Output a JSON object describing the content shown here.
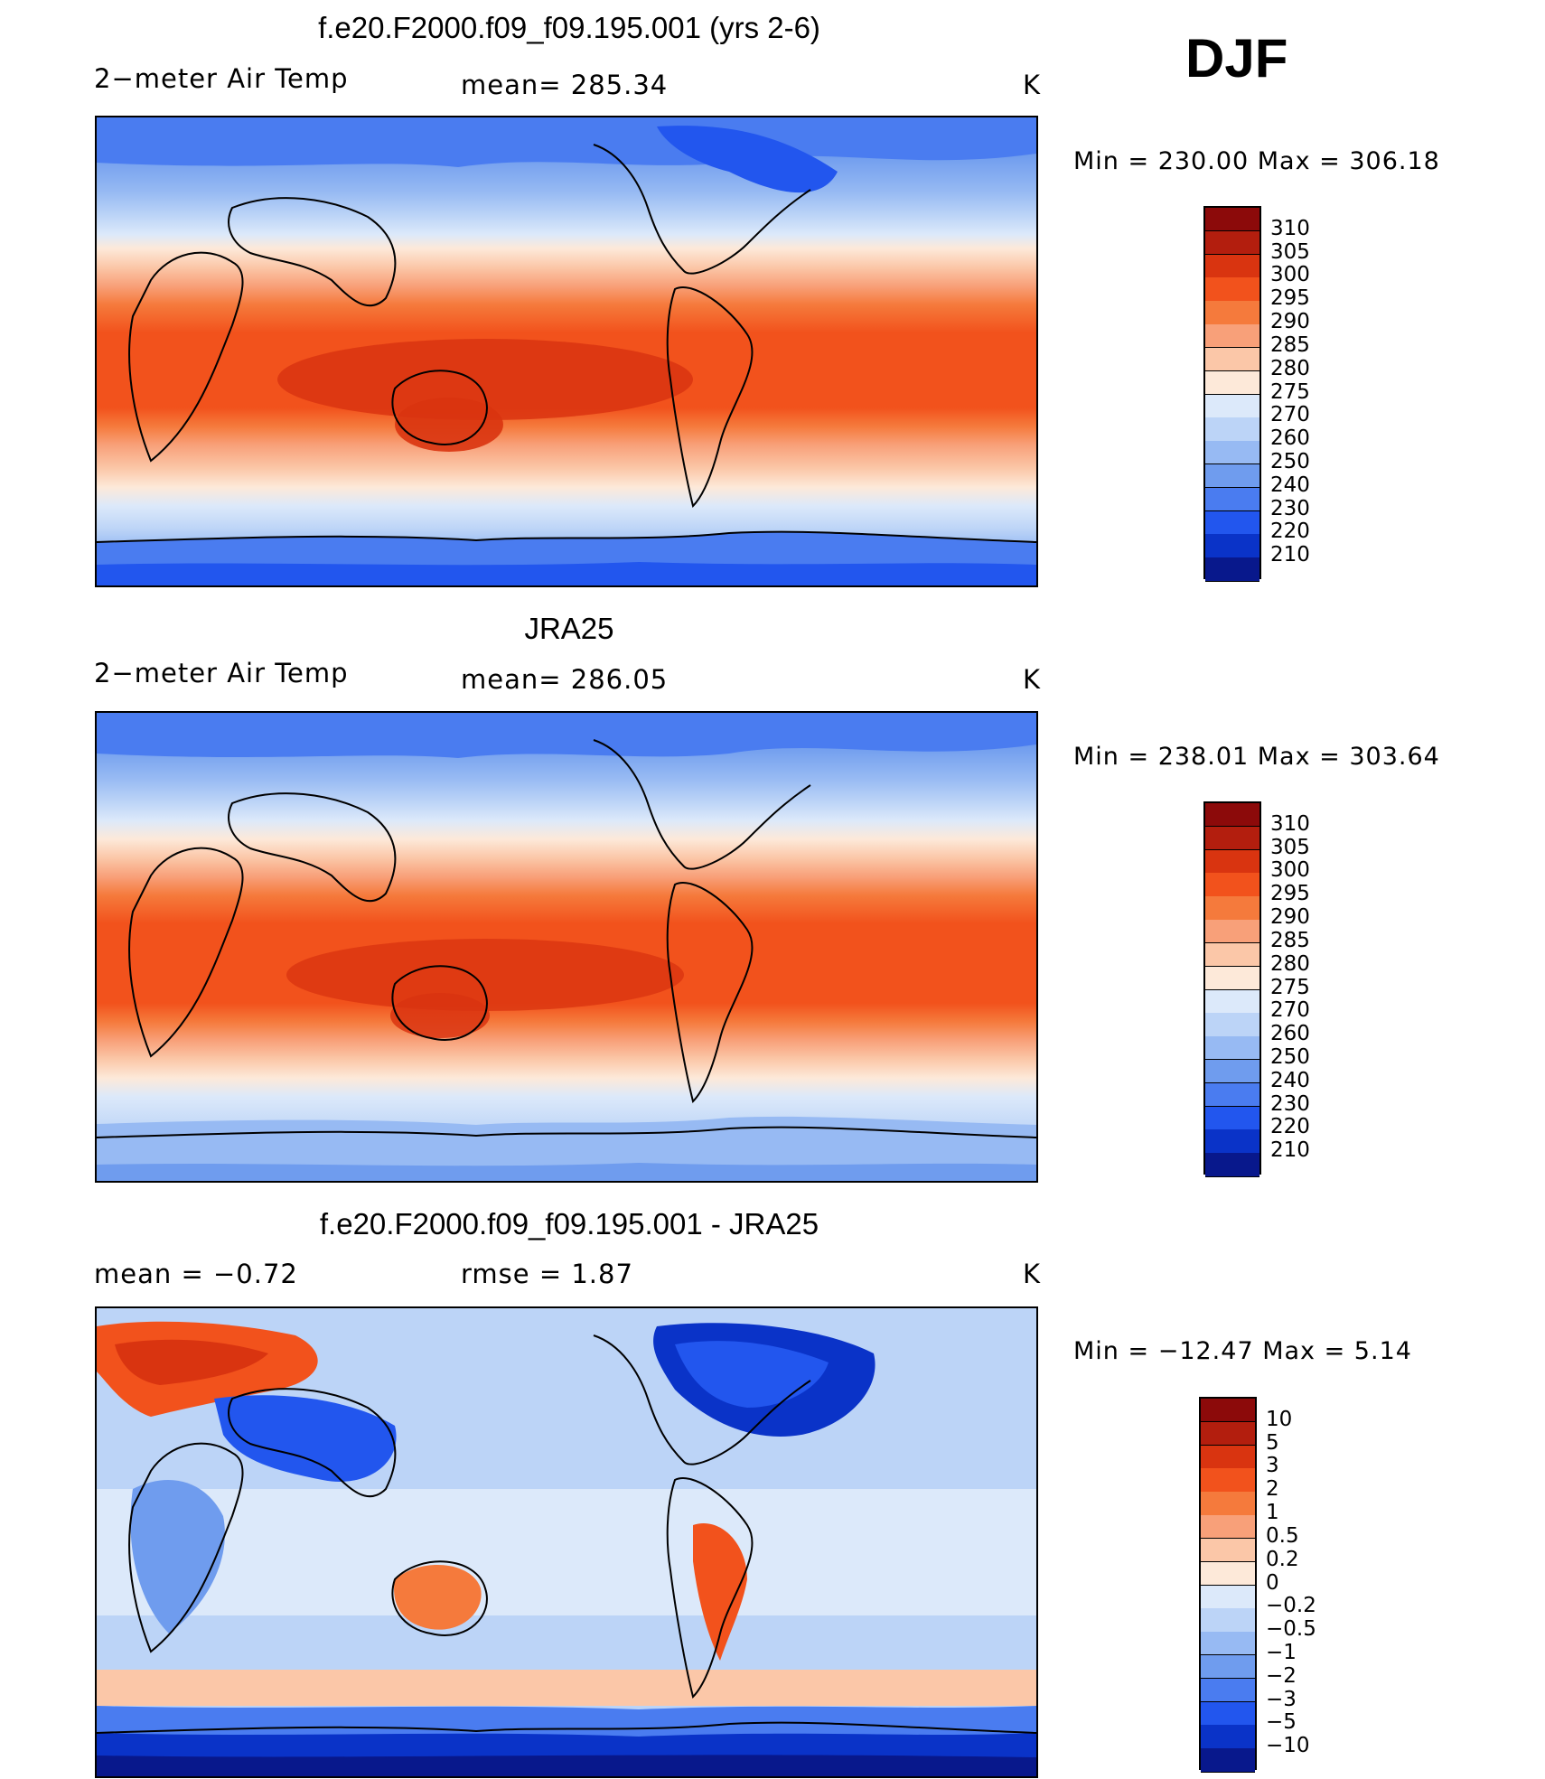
{
  "season": "DJF",
  "units": "K",
  "panels": [
    {
      "title": "f.e20.F2000.f09_f09.195.001 (yrs 2-6)",
      "left_label": "2−meter Air Temp",
      "center_label": "mean=  285.34",
      "right_label": "K",
      "min_max": "Min  =  230.00  Max  =  306.18",
      "colorbar_labels": [
        "310",
        "305",
        "300",
        "295",
        "290",
        "285",
        "280",
        "275",
        "270",
        "260",
        "250",
        "240",
        "230",
        "220",
        "210"
      ]
    },
    {
      "title": "JRA25",
      "left_label": "2−meter Air Temp",
      "center_label": "mean=  286.05",
      "right_label": "K",
      "min_max": "Min  =  238.01  Max  =  303.64",
      "colorbar_labels": [
        "310",
        "305",
        "300",
        "295",
        "290",
        "285",
        "280",
        "275",
        "270",
        "260",
        "250",
        "240",
        "230",
        "220",
        "210"
      ]
    },
    {
      "title": "f.e20.F2000.f09_f09.195.001 - JRA25",
      "left_label": "mean  =    −0.72",
      "center_label": "rmse  =      1.87",
      "right_label": "K",
      "min_max": "Min  =  −12.47  Max  =       5.14",
      "colorbar_labels": [
        "10",
        "5",
        "3",
        "2",
        "1",
        "0.5",
        "0.2",
        "0",
        "−0.2",
        "−0.5",
        "−1",
        "−2",
        "−3",
        "−5",
        "−10"
      ]
    }
  ],
  "colors": {
    "palette_top_to_bottom": [
      "#8c0a0a",
      "#b31e0e",
      "#d93410",
      "#f2521c",
      "#f57a3c",
      "#f8a079",
      "#fbc7a8",
      "#fde9d9",
      "#dce9fa",
      "#bcd4f7",
      "#97baf3",
      "#6f9cee",
      "#4a7cf0",
      "#2256ee",
      "#0a33c8",
      "#08188c"
    ]
  }
}
